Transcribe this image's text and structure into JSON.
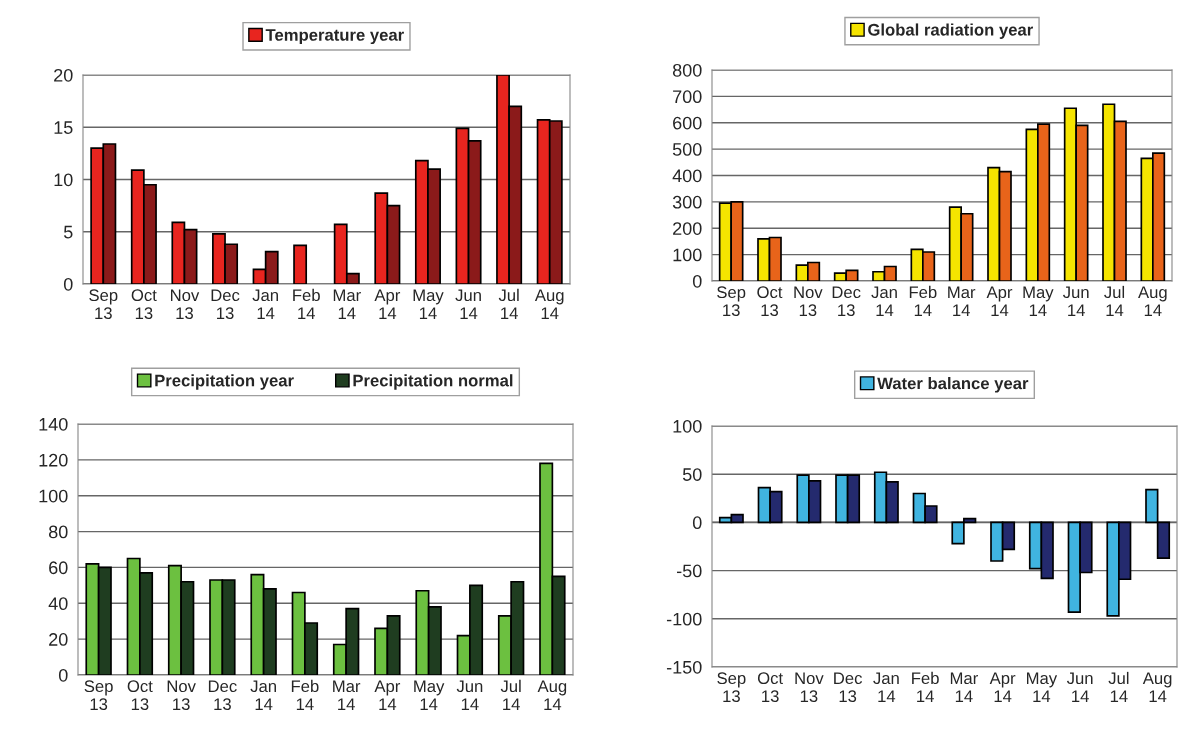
{
  "chart_data": [
    {
      "type": "bar",
      "categories": [
        "Sep\n13",
        "Oct\n13",
        "Nov\n13",
        "Dec\n13",
        "Jan\n14",
        "Feb\n14",
        "Mar\n14",
        "Apr\n14",
        "May\n14",
        "Jun\n14",
        "Jul\n14",
        "Aug\n14"
      ],
      "series": [
        {
          "name": "Temperature year",
          "color": "#e8251f",
          "values": [
            13,
            10.9,
            5.9,
            4.8,
            1.4,
            3.7,
            5.7,
            8.7,
            11.8,
            14.9,
            20,
            15.7
          ]
        },
        {
          "color": "#8b1a1a",
          "values": [
            13.4,
            9.5,
            5.2,
            3.8,
            3.1,
            null,
            1.0,
            7.5,
            11.0,
            13.7,
            17.0,
            15.6
          ]
        }
      ],
      "ylim": [
        0,
        20
      ],
      "yticks": [
        0,
        5,
        10,
        15,
        20
      ],
      "grid": "y",
      "legend": "top"
    },
    {
      "type": "bar",
      "categories": [
        "Sep\n13",
        "Oct\n13",
        "Nov\n13",
        "Dec\n13",
        "Jan\n14",
        "Feb\n14",
        "Mar\n14",
        "Apr\n14",
        "May\n14",
        "Jun\n14",
        "Jul\n14",
        "Aug\n14"
      ],
      "series": [
        {
          "name": "Global radiation year",
          "color": "#f5e400",
          "values": [
            295,
            160,
            60,
            30,
            35,
            120,
            280,
            430,
            575,
            655,
            670,
            465
          ]
        },
        {
          "color": "#e8641a",
          "values": [
            300,
            165,
            70,
            40,
            55,
            110,
            255,
            415,
            595,
            590,
            605,
            485
          ]
        }
      ],
      "ylim": [
        0,
        800
      ],
      "yticks": [
        0,
        100,
        200,
        300,
        400,
        500,
        600,
        700,
        800
      ],
      "grid": "y",
      "legend": "top"
    },
    {
      "type": "bar",
      "categories": [
        "Sep\n13",
        "Oct\n13",
        "Nov\n13",
        "Dec\n13",
        "Jan\n14",
        "Feb\n14",
        "Mar\n14",
        "Apr\n14",
        "May\n14",
        "Jun\n14",
        "Jul\n14",
        "Aug\n14"
      ],
      "series": [
        {
          "name": "Precipitation year",
          "color": "#6cc040",
          "values": [
            62,
            65,
            61,
            53,
            56,
            46,
            17,
            26,
            47,
            22,
            33,
            118
          ]
        },
        {
          "name": "Precipitation normal",
          "color": "#1f3d20",
          "values": [
            60,
            57,
            52,
            53,
            48,
            29,
            37,
            33,
            38,
            50,
            52,
            55
          ]
        }
      ],
      "ylim": [
        0,
        140
      ],
      "yticks": [
        0,
        20,
        40,
        60,
        80,
        100,
        120,
        140
      ],
      "grid": "y",
      "legend": "top"
    },
    {
      "type": "bar",
      "categories": [
        "Sep\n13",
        "Oct\n13",
        "Nov\n13",
        "Dec\n13",
        "Jan\n14",
        "Feb\n14",
        "Mar\n14",
        "Apr\n14",
        "May\n14",
        "Jun\n14",
        "Jul\n14",
        "Aug\n14"
      ],
      "series": [
        {
          "name": "Water balance year",
          "color": "#40b4e0",
          "values": [
            5,
            36,
            49,
            49,
            52,
            30,
            -22,
            -40,
            -48,
            -93,
            -97,
            34
          ]
        },
        {
          "color": "#242a6e",
          "values": [
            8,
            32,
            43,
            49,
            42,
            17,
            4,
            -28,
            -58,
            -52,
            -59,
            -37
          ]
        }
      ],
      "ylim": [
        -150,
        100
      ],
      "yticks": [
        -150,
        -100,
        -50,
        0,
        50,
        100
      ],
      "grid": "y",
      "legend": "top"
    }
  ]
}
